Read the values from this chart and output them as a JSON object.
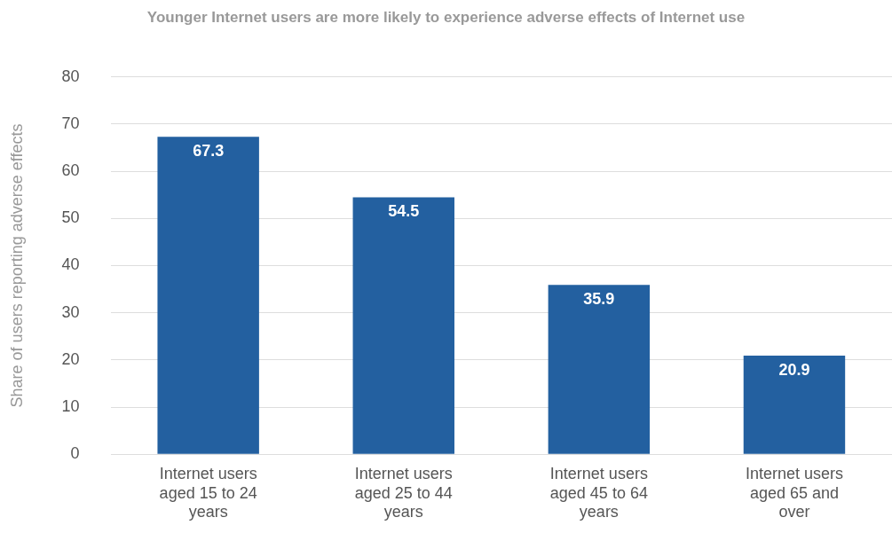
{
  "chart_data": {
    "type": "bar",
    "title": "Younger Internet users are more likely to experience adverse effects of Internet use",
    "ylabel": "Share of users reporting adverse effects",
    "categories": [
      "Internet users aged 15 to 24 years",
      "Internet users aged 25 to 44 years",
      "Internet users aged 45 to 64 years",
      "Internet users aged 65 and over"
    ],
    "values": [
      67.3,
      54.5,
      35.9,
      20.9
    ],
    "color": "#2360a0",
    "ylim": [
      0,
      80
    ],
    "yticks": [
      0,
      10,
      20,
      30,
      40,
      50,
      60,
      70,
      80
    ],
    "grid": "y",
    "data_labels": true
  }
}
